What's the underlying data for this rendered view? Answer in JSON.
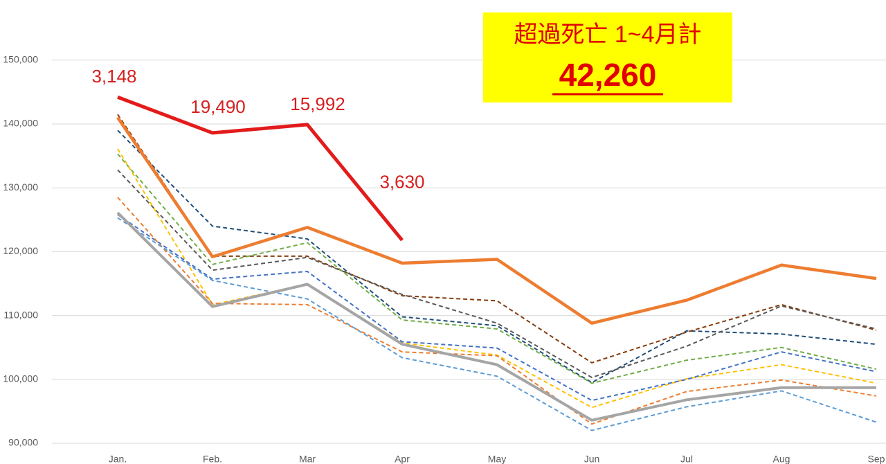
{
  "chart_data": {
    "type": "line",
    "categories": [
      "Jan.",
      "Feb.",
      "Mar",
      "Apr",
      "May",
      "Jun",
      "Jul",
      "Aug",
      "Sep"
    ],
    "ylim": [
      90000,
      159000
    ],
    "yticks": [
      {
        "value": 90000,
        "label": "90,000"
      },
      {
        "value": 100000,
        "label": "100,000"
      },
      {
        "value": 110000,
        "label": "110,000"
      },
      {
        "value": 120000,
        "label": "120,000"
      },
      {
        "value": 130000,
        "label": "130,000"
      },
      {
        "value": 140000,
        "label": "140,000"
      },
      {
        "value": 150000,
        "label": "150,000"
      }
    ],
    "grid": true,
    "box": {
      "title": "超過死亡 1~4月計",
      "total": "42,260",
      "color": "#ffff00",
      "text_color": "#e00000"
    },
    "series": [
      {
        "color": "#1f4e79",
        "dash": true,
        "width": 2,
        "values": [
          139000,
          124000,
          122000,
          109800,
          108400,
          99500,
          107600,
          107100,
          105500
        ]
      },
      {
        "color": "#843c0c",
        "dash": true,
        "width": 2,
        "values": [
          141500,
          119300,
          119300,
          113100,
          112300,
          102600,
          107400,
          111700,
          107700
        ]
      },
      {
        "color": "#595959",
        "dash": true,
        "width": 2,
        "values": [
          132800,
          117100,
          119100,
          113300,
          108800,
          100300,
          105200,
          111500,
          107900
        ]
      },
      {
        "color": "#70ad47",
        "dash": true,
        "width": 2,
        "values": [
          135300,
          118000,
          121400,
          109300,
          107900,
          99400,
          103000,
          105000,
          101600
        ]
      },
      {
        "color": "#ffc000",
        "dash": true,
        "width": 2,
        "values": [
          136100,
          111700,
          114900,
          105700,
          103800,
          95600,
          100100,
          102300,
          99400
        ]
      },
      {
        "color": "#4472c4",
        "dash": true,
        "width": 2,
        "values": [
          125800,
          115700,
          116900,
          105900,
          104900,
          96700,
          100000,
          104300,
          101200
        ]
      },
      {
        "color": "#ed7d31",
        "dash": true,
        "width": 2,
        "values": [
          128500,
          111900,
          111700,
          104300,
          103700,
          93000,
          98100,
          99900,
          97400
        ]
      },
      {
        "color": "#5b9bd5",
        "dash": true,
        "width": 2,
        "values": [
          125300,
          115500,
          112600,
          103400,
          100500,
          92000,
          95700,
          98200,
          93300
        ]
      },
      {
        "color": "#a5a5a5",
        "dash": false,
        "width": 4,
        "values": [
          126100,
          111400,
          114900,
          105500,
          102300,
          93600,
          96800,
          98700,
          98700
        ]
      },
      {
        "color": "#ed7d31",
        "dash": false,
        "width": 4.5,
        "values": [
          141000,
          119200,
          123800,
          118200,
          118800,
          108800,
          112400,
          117900,
          115800
        ]
      },
      {
        "color": "#e31b1b",
        "dash": false,
        "width": 5,
        "values": [
          144200,
          138600,
          139900,
          121800,
          null,
          null,
          null,
          null,
          null
        ],
        "annotations": [
          "3,148",
          "19,490",
          "15,992",
          "3,630"
        ]
      }
    ]
  }
}
